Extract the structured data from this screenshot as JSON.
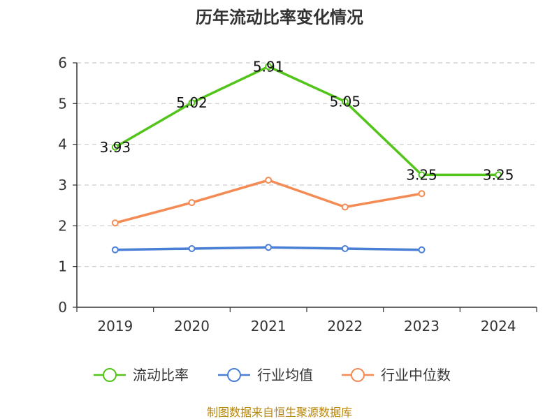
{
  "chart_data": {
    "type": "line",
    "title": "历年流动比率变化情况",
    "categories": [
      "2019",
      "2020",
      "2021",
      "2022",
      "2023",
      "2024"
    ],
    "ylim": [
      0,
      6
    ],
    "yticks": [
      "0",
      "1",
      "2",
      "3",
      "4",
      "5",
      "6"
    ],
    "grid": true,
    "legend_position": "bottom",
    "series": [
      {
        "name": "流动比率",
        "values": [
          3.93,
          5.02,
          5.91,
          5.05,
          3.25,
          3.25
        ],
        "labels": [
          "3.93",
          "5.02",
          "5.91",
          "5.05",
          "3.25",
          "3.25"
        ],
        "color": "#52c41a"
      },
      {
        "name": "行业均值",
        "values": [
          1.41,
          1.44,
          1.47,
          1.44,
          1.41,
          null
        ],
        "color": "#4a7fd6"
      },
      {
        "name": "行业中位数",
        "values": [
          2.07,
          2.57,
          3.12,
          2.46,
          2.79,
          null
        ],
        "color": "#f58b54"
      }
    ]
  },
  "source": "制图数据来自恒生聚源数据库"
}
